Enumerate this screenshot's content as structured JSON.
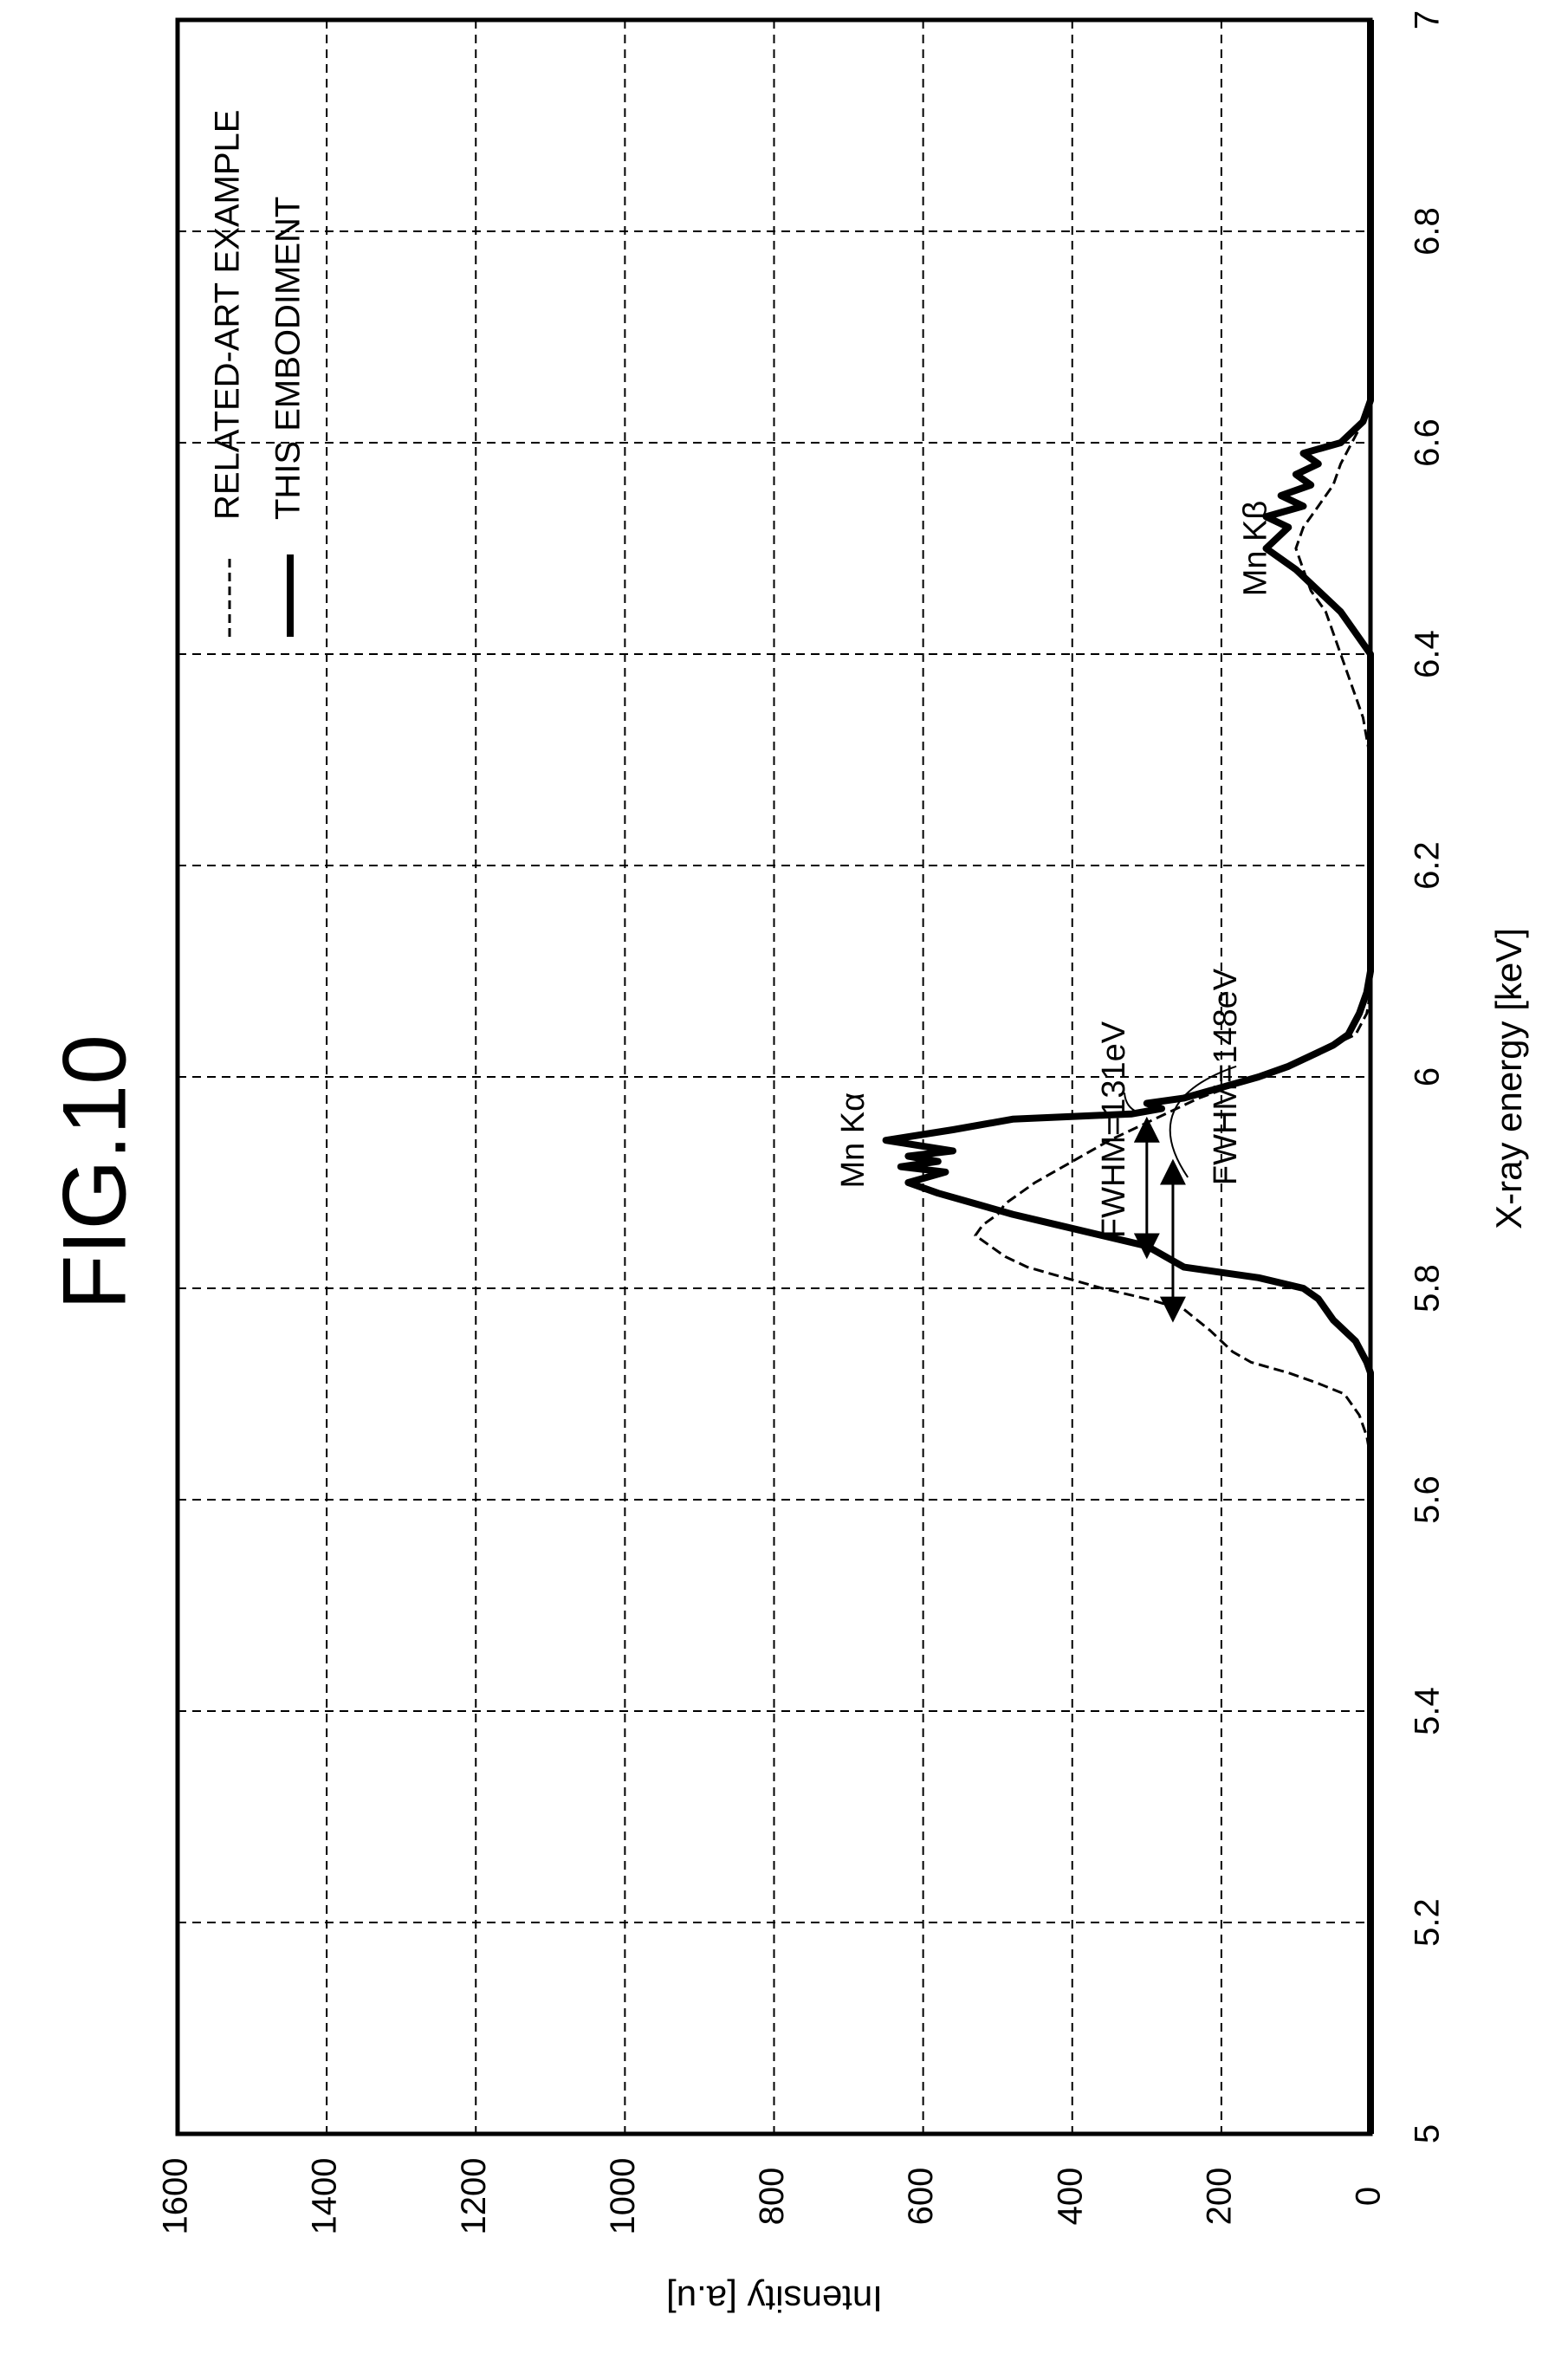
{
  "figure": {
    "title": "FIG.10"
  },
  "chart_data": {
    "type": "line",
    "title": "",
    "xlabel": "X-ray energy [keV]",
    "ylabel": "Intensity [a.u]",
    "xlim": [
      5,
      7
    ],
    "ylim": [
      0,
      1600
    ],
    "x_ticks": [
      "5",
      "5.2",
      "5.4",
      "5.6",
      "5.8",
      "6",
      "6.2",
      "6.4",
      "6.6",
      "6.8",
      "7"
    ],
    "y_ticks": [
      "0",
      "200",
      "400",
      "600",
      "800",
      "1000",
      "1200",
      "1400",
      "1600"
    ],
    "grid": true,
    "orientation": "rotated-90-ccw",
    "legend_position": "top-right",
    "series": [
      {
        "name": "RELATED-ART EXAMPLE",
        "style": "dashed",
        "points": [
          [
            5.0,
            0
          ],
          [
            5.64,
            0
          ],
          [
            5.66,
            5
          ],
          [
            5.68,
            15
          ],
          [
            5.7,
            35
          ],
          [
            5.71,
            70
          ],
          [
            5.72,
            110
          ],
          [
            5.73,
            160
          ],
          [
            5.74,
            185
          ],
          [
            5.75,
            200
          ],
          [
            5.76,
            215
          ],
          [
            5.78,
            250
          ],
          [
            5.79,
            300
          ],
          [
            5.8,
            360
          ],
          [
            5.81,
            410
          ],
          [
            5.82,
            460
          ],
          [
            5.83,
            490
          ],
          [
            5.84,
            510
          ],
          [
            5.85,
            530
          ],
          [
            5.86,
            520
          ],
          [
            5.87,
            500
          ],
          [
            5.88,
            490
          ],
          [
            5.89,
            470
          ],
          [
            5.9,
            450
          ],
          [
            5.92,
            400
          ],
          [
            5.94,
            350
          ],
          [
            5.96,
            290
          ],
          [
            5.98,
            230
          ],
          [
            6.0,
            150
          ],
          [
            6.02,
            80
          ],
          [
            6.04,
            20
          ],
          [
            6.06,
            5
          ],
          [
            6.08,
            0
          ],
          [
            6.3,
            0
          ],
          [
            6.34,
            10
          ],
          [
            6.38,
            30
          ],
          [
            6.42,
            50
          ],
          [
            6.44,
            60
          ],
          [
            6.46,
            80
          ],
          [
            6.48,
            90
          ],
          [
            6.5,
            100
          ],
          [
            6.52,
            90
          ],
          [
            6.54,
            70
          ],
          [
            6.56,
            50
          ],
          [
            6.58,
            40
          ],
          [
            6.6,
            25
          ],
          [
            6.62,
            10
          ],
          [
            6.64,
            0
          ],
          [
            7.0,
            0
          ]
        ]
      },
      {
        "name": "THIS EMBODIMENT",
        "style": "solid",
        "points": [
          [
            5.0,
            0
          ],
          [
            5.72,
            0
          ],
          [
            5.73,
            5
          ],
          [
            5.75,
            20
          ],
          [
            5.77,
            50
          ],
          [
            5.79,
            70
          ],
          [
            5.8,
            90
          ],
          [
            5.81,
            150
          ],
          [
            5.82,
            250
          ],
          [
            5.84,
            300
          ],
          [
            5.86,
            420
          ],
          [
            5.87,
            480
          ],
          [
            5.88,
            530
          ],
          [
            5.89,
            580
          ],
          [
            5.9,
            620
          ],
          [
            5.91,
            570
          ],
          [
            5.915,
            630
          ],
          [
            5.92,
            580
          ],
          [
            5.925,
            620
          ],
          [
            5.93,
            560
          ],
          [
            5.94,
            650
          ],
          [
            5.95,
            560
          ],
          [
            5.96,
            480
          ],
          [
            5.965,
            320
          ],
          [
            5.97,
            280
          ],
          [
            5.975,
            300
          ],
          [
            5.98,
            250
          ],
          [
            5.99,
            200
          ],
          [
            6.0,
            150
          ],
          [
            6.01,
            110
          ],
          [
            6.02,
            80
          ],
          [
            6.03,
            50
          ],
          [
            6.04,
            30
          ],
          [
            6.06,
            15
          ],
          [
            6.08,
            5
          ],
          [
            6.1,
            0
          ],
          [
            6.4,
            0
          ],
          [
            6.42,
            20
          ],
          [
            6.44,
            40
          ],
          [
            6.46,
            70
          ],
          [
            6.48,
            100
          ],
          [
            6.5,
            140
          ],
          [
            6.52,
            110
          ],
          [
            6.53,
            140
          ],
          [
            6.54,
            90
          ],
          [
            6.55,
            120
          ],
          [
            6.56,
            80
          ],
          [
            6.57,
            100
          ],
          [
            6.58,
            70
          ],
          [
            6.59,
            90
          ],
          [
            6.6,
            40
          ],
          [
            6.62,
            10
          ],
          [
            6.64,
            0
          ],
          [
            7.0,
            0
          ]
        ]
      }
    ],
    "annotations": [
      {
        "text": "Mn Kα",
        "x": 5.94,
        "y": 680
      },
      {
        "text": "Mn Kβ",
        "x": 6.5,
        "y": 140
      },
      {
        "text": "FWHM=131eV",
        "x": 5.95,
        "y": 330
      },
      {
        "text": "FWHM=148eV",
        "x": 6.0,
        "y": 180
      }
    ],
    "fwhm_arrows": [
      {
        "name": "fwhm-131-arrow",
        "x1": 5.83,
        "x2": 5.96,
        "y": 300
      },
      {
        "name": "fwhm-148-arrow",
        "x1": 5.77,
        "x2": 5.92,
        "y": 265
      }
    ]
  }
}
